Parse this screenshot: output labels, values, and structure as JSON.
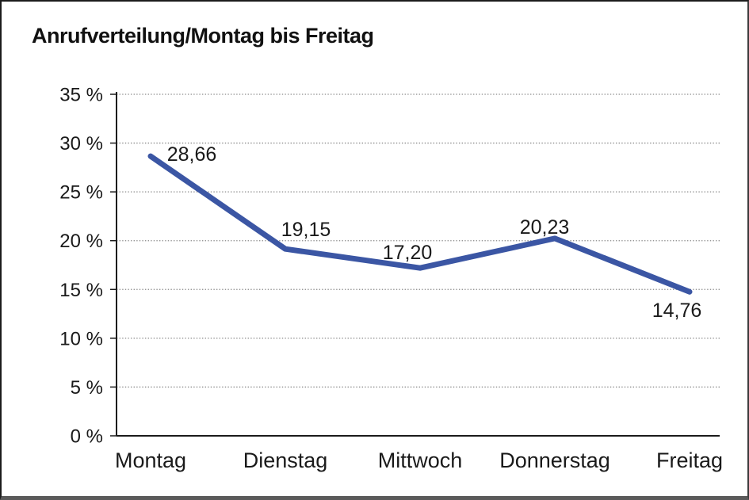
{
  "window": {
    "title": "Anrufverteilung/Montag bis Freitag"
  },
  "chart_data": {
    "type": "line",
    "title": "Anrufverteilung/Montag bis Freitag",
    "categories": [
      "Montag",
      "Dienstag",
      "Mittwoch",
      "Donnerstag",
      "Freitag"
    ],
    "series": [
      {
        "name": "Anrufverteilung",
        "values": [
          28.66,
          19.15,
          17.2,
          20.23,
          14.76
        ]
      }
    ],
    "point_labels": [
      "28,66",
      "19,15",
      "17,20",
      "20,23",
      "14,76"
    ],
    "xlabel": "",
    "ylabel": "",
    "ylim": [
      0,
      35
    ],
    "ytick_step": 5,
    "ytick_labels": [
      "0 %",
      "5 %",
      "10 %",
      "15 %",
      "20 %",
      "25 %",
      "30 %",
      "35 %"
    ],
    "grid": "horizontal-dotted",
    "legend": "none"
  },
  "colors": {
    "line": "#3B56A4",
    "grid": "#8a8a8a",
    "axis": "#1a1a1a",
    "text": "#1a1a1a",
    "background": "#ffffff"
  }
}
